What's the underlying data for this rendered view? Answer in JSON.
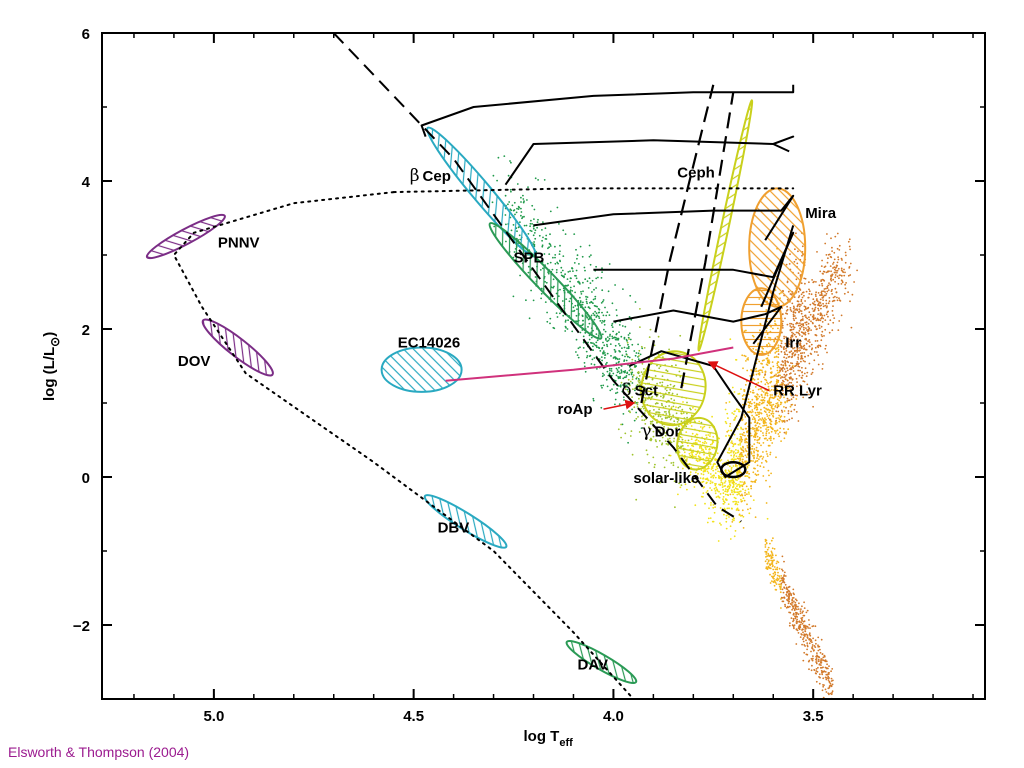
{
  "chart_data": {
    "type": "scatter",
    "title": "",
    "xlabel": "log T",
    "xlabel_sub": "eff",
    "ylabel": "log (L/L",
    "ylabel_symbol": "⊙",
    "ylabel_close": ")",
    "x_inverted": true,
    "xlim": [
      5.28,
      3.07
    ],
    "ylim": [
      -3,
      6
    ],
    "x_ticks": [
      {
        "value": 5.0,
        "label": "5.0"
      },
      {
        "value": 4.5,
        "label": "4.5"
      },
      {
        "value": 4.0,
        "label": "4.0"
      },
      {
        "value": 3.5,
        "label": "3.5"
      }
    ],
    "y_ticks": [
      {
        "value": 6,
        "label": "6"
      },
      {
        "value": 4,
        "label": "4"
      },
      {
        "value": 2,
        "label": "2"
      },
      {
        "value": 0,
        "label": "0"
      },
      {
        "value": -2,
        "label": "−2"
      }
    ],
    "grid": false,
    "regions": [
      {
        "label": "PNNV",
        "cx": 5.07,
        "cy": 3.25,
        "rx": 0.11,
        "ry": 0.1,
        "angle": -28,
        "color": "#7b2d86",
        "hatch": "diag",
        "label_x": 4.99,
        "label_y": 3.1
      },
      {
        "label": "DOV",
        "cx": 4.94,
        "cy": 1.75,
        "rx": 0.11,
        "ry": 0.12,
        "angle": 38,
        "color": "#7b2d86",
        "hatch": "diag",
        "label_x": 5.09,
        "label_y": 1.5
      },
      {
        "label": "βCep",
        "cx": 4.33,
        "cy": 3.85,
        "rx": 0.21,
        "ry": 0.13,
        "angle": 50,
        "color": "#29a9c1",
        "hatch": "diag",
        "label_x": 4.51,
        "label_y": 4.0
      },
      {
        "label": "SPB",
        "cx": 4.17,
        "cy": 2.65,
        "rx": 0.2,
        "ry": 0.13,
        "angle": 46,
        "color": "#2a9a55",
        "hatch": "diag",
        "label_x": 4.25,
        "label_y": 2.9
      },
      {
        "label": "EC14026",
        "cx": 4.48,
        "cy": 1.45,
        "rx": 0.1,
        "ry": 0.3,
        "angle": 0,
        "color": "#29a9c1",
        "hatch": "diag",
        "label_x": 4.54,
        "label_y": 1.75
      },
      {
        "label": "DBV",
        "cx": 4.37,
        "cy": -0.6,
        "rx": 0.12,
        "ry": 0.11,
        "angle": 32,
        "color": "#29a9c1",
        "hatch": "diag",
        "label_x": 4.44,
        "label_y": -0.75
      },
      {
        "label": "DAV",
        "cx": 4.03,
        "cy": -2.5,
        "rx": 0.1,
        "ry": 0.1,
        "angle": 30,
        "color": "#2a9a55",
        "hatch": "diag",
        "label_x": 4.09,
        "label_y": -2.6
      },
      {
        "label": "Ceph",
        "cx": 3.72,
        "cy": 3.4,
        "rx": 0.32,
        "ry": 0.05,
        "angle": -78,
        "color": "#c9d01c",
        "hatch": "diag",
        "label_x": 3.84,
        "label_y": 4.05
      },
      {
        "label": "Mira",
        "cx": 3.59,
        "cy": 3.1,
        "rx": 0.07,
        "ry": 0.8,
        "angle": 0,
        "color": "#f0a030",
        "hatch": "diag",
        "label_x": 3.52,
        "label_y": 3.5
      },
      {
        "label": "Irr",
        "cx": 3.63,
        "cy": 2.1,
        "rx": 0.05,
        "ry": 0.45,
        "angle": 0,
        "color": "#f0a030",
        "hatch": "horiz",
        "label_x": 3.57,
        "label_y": 1.75
      },
      {
        "label": "δSct",
        "cx": 3.85,
        "cy": 1.2,
        "rx": 0.08,
        "ry": 0.5,
        "angle": 10,
        "color": "#c9d01c",
        "hatch": "horiz",
        "label_x": 3.98,
        "label_y": 1.1
      },
      {
        "label": "γDor",
        "cx": 3.79,
        "cy": 0.45,
        "rx": 0.05,
        "ry": 0.35,
        "angle": 10,
        "color": "#c9d01c",
        "hatch": "horiz",
        "label_x": 3.93,
        "label_y": 0.55
      },
      {
        "label": "solar-like",
        "cx": 3.7,
        "cy": 0.1,
        "rx": 0.03,
        "ry": 0.1,
        "angle": 0,
        "color": "#c9d01c",
        "hatch": "none",
        "label_x": 3.95,
        "label_y": -0.08
      }
    ],
    "annotations": [
      {
        "label": "roAp",
        "text_x": 4.14,
        "text_y": 0.85,
        "arrow_to_x": 3.95,
        "arrow_to_y": 1.0
      },
      {
        "label": "RR Lyr",
        "text_x": 3.6,
        "text_y": 1.1,
        "arrow_to_x": 3.76,
        "arrow_to_y": 1.55
      }
    ],
    "greek": {
      "beta": "β",
      "delta": "δ",
      "gamma": "γ"
    },
    "label_parts": {
      "cep": "Cep",
      "sct": "Sct",
      "dor": "Dor"
    },
    "main_sequence": [
      [
        4.7,
        6.0
      ],
      [
        4.4,
        4.3
      ],
      [
        4.2,
        2.8
      ],
      [
        4.0,
        1.3
      ],
      [
        3.85,
        0.4
      ],
      [
        3.74,
        -0.4
      ],
      [
        3.68,
        -0.6
      ]
    ],
    "instability_strip": [
      {
        "points": [
          [
            3.93,
            1.0
          ],
          [
            3.86,
            2.9
          ],
          [
            3.75,
            5.3
          ]
        ]
      },
      {
        "points": [
          [
            3.83,
            1.2
          ],
          [
            3.77,
            2.9
          ],
          [
            3.7,
            5.2
          ]
        ]
      }
    ],
    "white_dwarf_track": [
      [
        4.55,
        3.85
      ],
      [
        4.8,
        3.7
      ],
      [
        5.05,
        3.3
      ],
      [
        5.1,
        3.0
      ],
      [
        5.03,
        2.3
      ],
      [
        4.92,
        1.4
      ],
      [
        4.6,
        0.2
      ],
      [
        4.3,
        -1.0
      ],
      [
        4.1,
        -2.1
      ],
      [
        3.95,
        -3.0
      ]
    ],
    "wd_horizontal_track": [
      [
        4.55,
        3.85
      ],
      [
        4.1,
        3.9
      ],
      [
        3.7,
        3.9
      ],
      [
        3.55,
        3.9
      ]
    ],
    "evolution_tracks": [
      [
        [
          4.47,
          4.6
        ],
        [
          4.48,
          4.75
        ],
        [
          4.35,
          5.0
        ],
        [
          4.05,
          5.15
        ],
        [
          3.8,
          5.2
        ],
        [
          3.55,
          5.2
        ],
        [
          3.55,
          5.3
        ]
      ],
      [
        [
          4.27,
          3.95
        ],
        [
          4.2,
          4.5
        ],
        [
          3.9,
          4.55
        ],
        [
          3.6,
          4.5
        ],
        [
          3.55,
          4.6
        ],
        [
          3.6,
          4.5
        ],
        [
          3.56,
          4.4
        ]
      ],
      [
        [
          4.2,
          3.4
        ],
        [
          4.0,
          3.55
        ],
        [
          3.75,
          3.6
        ],
        [
          3.58,
          3.6
        ],
        [
          3.55,
          3.8
        ],
        [
          3.62,
          3.2
        ]
      ],
      [
        [
          4.05,
          2.8
        ],
        [
          3.9,
          2.8
        ],
        [
          3.7,
          2.8
        ],
        [
          3.6,
          2.7
        ],
        [
          3.55,
          3.3
        ],
        [
          3.63,
          2.3
        ]
      ],
      [
        [
          4.0,
          2.1
        ],
        [
          3.85,
          2.25
        ],
        [
          3.7,
          2.1
        ],
        [
          3.62,
          2.2
        ],
        [
          3.58,
          2.3
        ],
        [
          3.65,
          1.8
        ]
      ],
      [
        [
          3.96,
          1.5
        ],
        [
          3.88,
          1.7
        ],
        [
          3.75,
          1.5
        ],
        [
          3.7,
          1.1
        ],
        [
          3.66,
          0.8
        ],
        [
          3.66,
          0.2
        ],
        [
          3.72,
          0.0
        ],
        [
          3.74,
          0.2
        ],
        [
          3.68,
          0.8
        ],
        [
          3.6,
          2.5
        ],
        [
          3.55,
          3.4
        ]
      ]
    ],
    "ec_track": [
      [
        4.42,
        1.3
      ],
      [
        4.1,
        1.45
      ],
      [
        3.85,
        1.6
      ],
      [
        3.7,
        1.75
      ]
    ],
    "scatter_density": {
      "description_colors": [
        "#1f9a4a",
        "#9fc32c",
        "#f2e21a",
        "#f3b51c",
        "#d2792a"
      ]
    }
  },
  "credit": "Elsworth & Thompson (2004)"
}
